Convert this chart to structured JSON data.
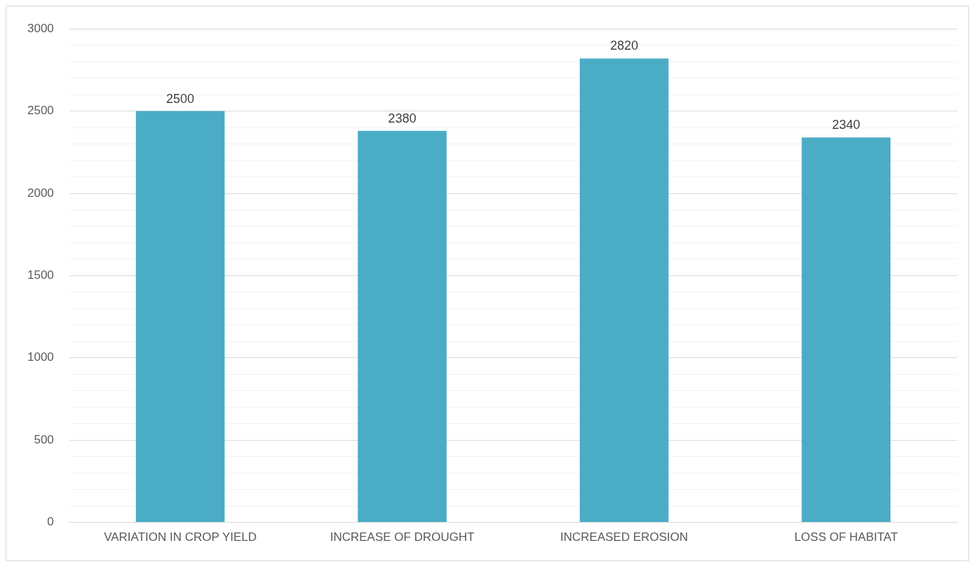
{
  "chart_data": {
    "type": "bar",
    "categories": [
      "VARIATION IN CROP YIELD",
      "INCREASE OF DROUGHT",
      "INCREASED EROSION",
      "LOSS OF HABITAT"
    ],
    "values": [
      2500,
      2380,
      2820,
      2340
    ],
    "color": "#4bacc6",
    "ylim": [
      0,
      3000
    ],
    "yticks": [
      0,
      {
        "value": 100,
        "label": null
      },
      {
        "value": 200,
        "label": null
      },
      {
        "value": 300,
        "label": null
      },
      {
        "value": 400,
        "label": null
      },
      500,
      {
        "value": 600,
        "label": null
      },
      {
        "value": 700,
        "label": null
      },
      {
        "value": 800,
        "label": null
      },
      {
        "value": 900,
        "label": null
      },
      1000,
      {
        "value": 1100,
        "label": null
      },
      {
        "value": 1200,
        "label": null
      },
      {
        "value": 1300,
        "label": null
      },
      {
        "value": 1400,
        "label": null
      },
      1500,
      {
        "value": 1600,
        "label": null
      },
      {
        "value": 1700,
        "label": null
      },
      {
        "value": 1800,
        "label": null
      },
      {
        "value": 1900,
        "label": null
      },
      2000,
      {
        "value": 2100,
        "label": null
      },
      {
        "value": 2200,
        "label": null
      },
      {
        "value": 2300,
        "label": null
      },
      {
        "value": 2400,
        "label": null
      },
      2500,
      {
        "value": 2600,
        "label": null
      },
      {
        "value": 2700,
        "label": null
      },
      {
        "value": 2800,
        "label": null
      },
      {
        "value": 2900,
        "label": null
      },
      3000
    ],
    "grid": "y",
    "data_labels": true,
    "legend": false
  }
}
